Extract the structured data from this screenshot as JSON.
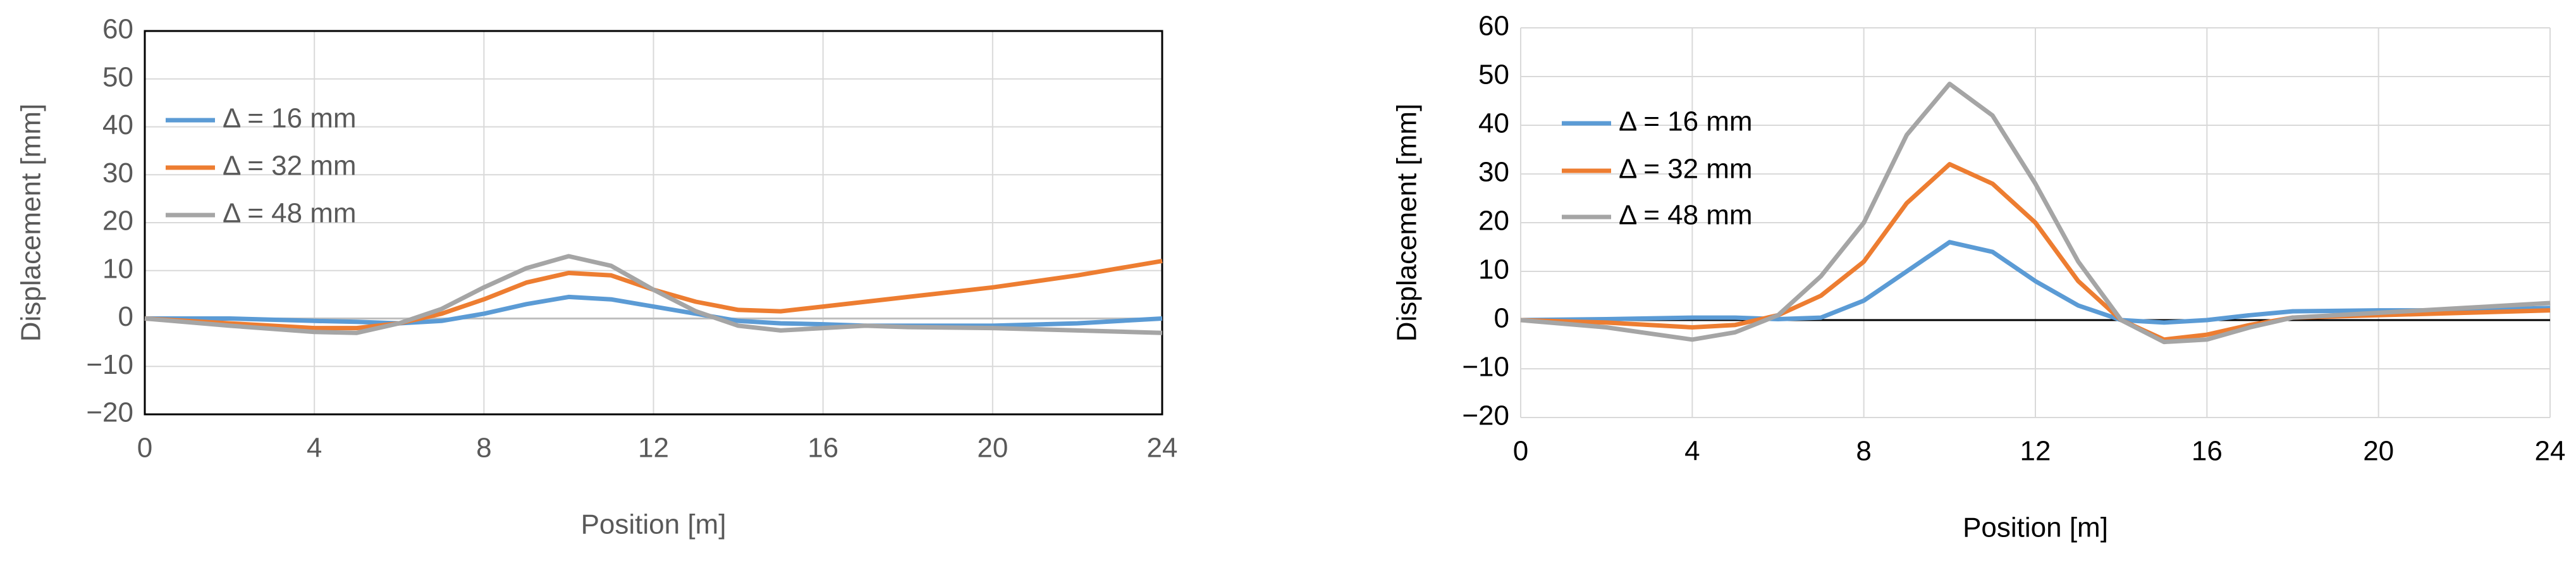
{
  "chart_data": [
    {
      "type": "line",
      "x_label": "Position [m]",
      "y_label": "Displacement [mm]",
      "xlim": [
        0,
        24
      ],
      "xticks": [
        0,
        4,
        8,
        12,
        16,
        20,
        24
      ],
      "ylim": [
        -20,
        60
      ],
      "yticks": [
        {
          "value": -20,
          "label": "−20"
        },
        {
          "value": -10,
          "label": "−10"
        },
        0,
        10,
        20,
        30,
        40,
        50,
        60
      ],
      "grid": true,
      "border": true,
      "zero_line_color": "#bfbfbf",
      "text_color": "#595959",
      "x": [
        0,
        2,
        4,
        5,
        6,
        7,
        8,
        9,
        10,
        11,
        12,
        13,
        14,
        15,
        16,
        17,
        18,
        20,
        22,
        24
      ],
      "series": [
        {
          "name": "Δ = 16 mm",
          "color": "#5b9bd5",
          "values": [
            0,
            0,
            -0.5,
            -0.7,
            -1,
            -0.5,
            1,
            3,
            4.5,
            4,
            2.5,
            1,
            -0.5,
            -1,
            -1.2,
            -1.5,
            -1.5,
            -1.5,
            -1,
            0
          ]
        },
        {
          "name": "Δ = 32 mm",
          "color": "#ed7d31",
          "values": [
            0,
            -1,
            -2,
            -2,
            -1,
            1,
            4,
            7.5,
            9.5,
            9,
            6,
            3.5,
            1.8,
            1.5,
            2.5,
            3.5,
            4.5,
            6.5,
            9,
            12
          ]
        },
        {
          "name": "Δ = 48 mm",
          "color": "#a5a5a5",
          "values": [
            0,
            -1.5,
            -2.8,
            -3,
            -1,
            2,
            6.5,
            10.5,
            13,
            11,
            6,
            1.5,
            -1.5,
            -2.5,
            -2,
            -1.5,
            -1.8,
            -2,
            -2.5,
            -3
          ]
        }
      ]
    },
    {
      "type": "line",
      "x_label": "Position [m]",
      "y_label": "Displacement [mm]",
      "xlim": [
        0,
        24
      ],
      "xticks": [
        0,
        4,
        8,
        12,
        16,
        20,
        24
      ],
      "ylim": [
        -20,
        60
      ],
      "yticks": [
        {
          "value": -20,
          "label": "−20"
        },
        {
          "value": -10,
          "label": "−10"
        },
        0,
        10,
        20,
        30,
        40,
        50,
        60
      ],
      "grid": true,
      "border": false,
      "zero_line_color": "#000000",
      "text_color": "#000000",
      "x": [
        0,
        2,
        4,
        5,
        6,
        7,
        8,
        9,
        10,
        11,
        12,
        13,
        14,
        15,
        16,
        17,
        18,
        20,
        22,
        24
      ],
      "series": [
        {
          "name": "Δ = 16 mm",
          "color": "#5b9bd5",
          "values": [
            0,
            0.2,
            0.5,
            0.5,
            0.2,
            0.5,
            4,
            10,
            16,
            14,
            8,
            3,
            0,
            -0.5,
            0,
            1,
            1.8,
            2,
            2,
            2.5
          ]
        },
        {
          "name": "Δ = 32 mm",
          "color": "#ed7d31",
          "values": [
            0,
            -0.5,
            -1.5,
            -1,
            1,
            5,
            12,
            24,
            32,
            28,
            20,
            8,
            0,
            -4,
            -3,
            -1,
            0.5,
            1,
            1.5,
            2
          ]
        },
        {
          "name": "Δ = 48 mm",
          "color": "#a5a5a5",
          "values": [
            0,
            -1.5,
            -4,
            -2.5,
            1,
            9,
            20,
            38,
            48.5,
            42,
            28,
            12,
            0,
            -4.5,
            -4,
            -1.5,
            0.5,
            1.5,
            2.5,
            3.5
          ]
        }
      ]
    }
  ]
}
